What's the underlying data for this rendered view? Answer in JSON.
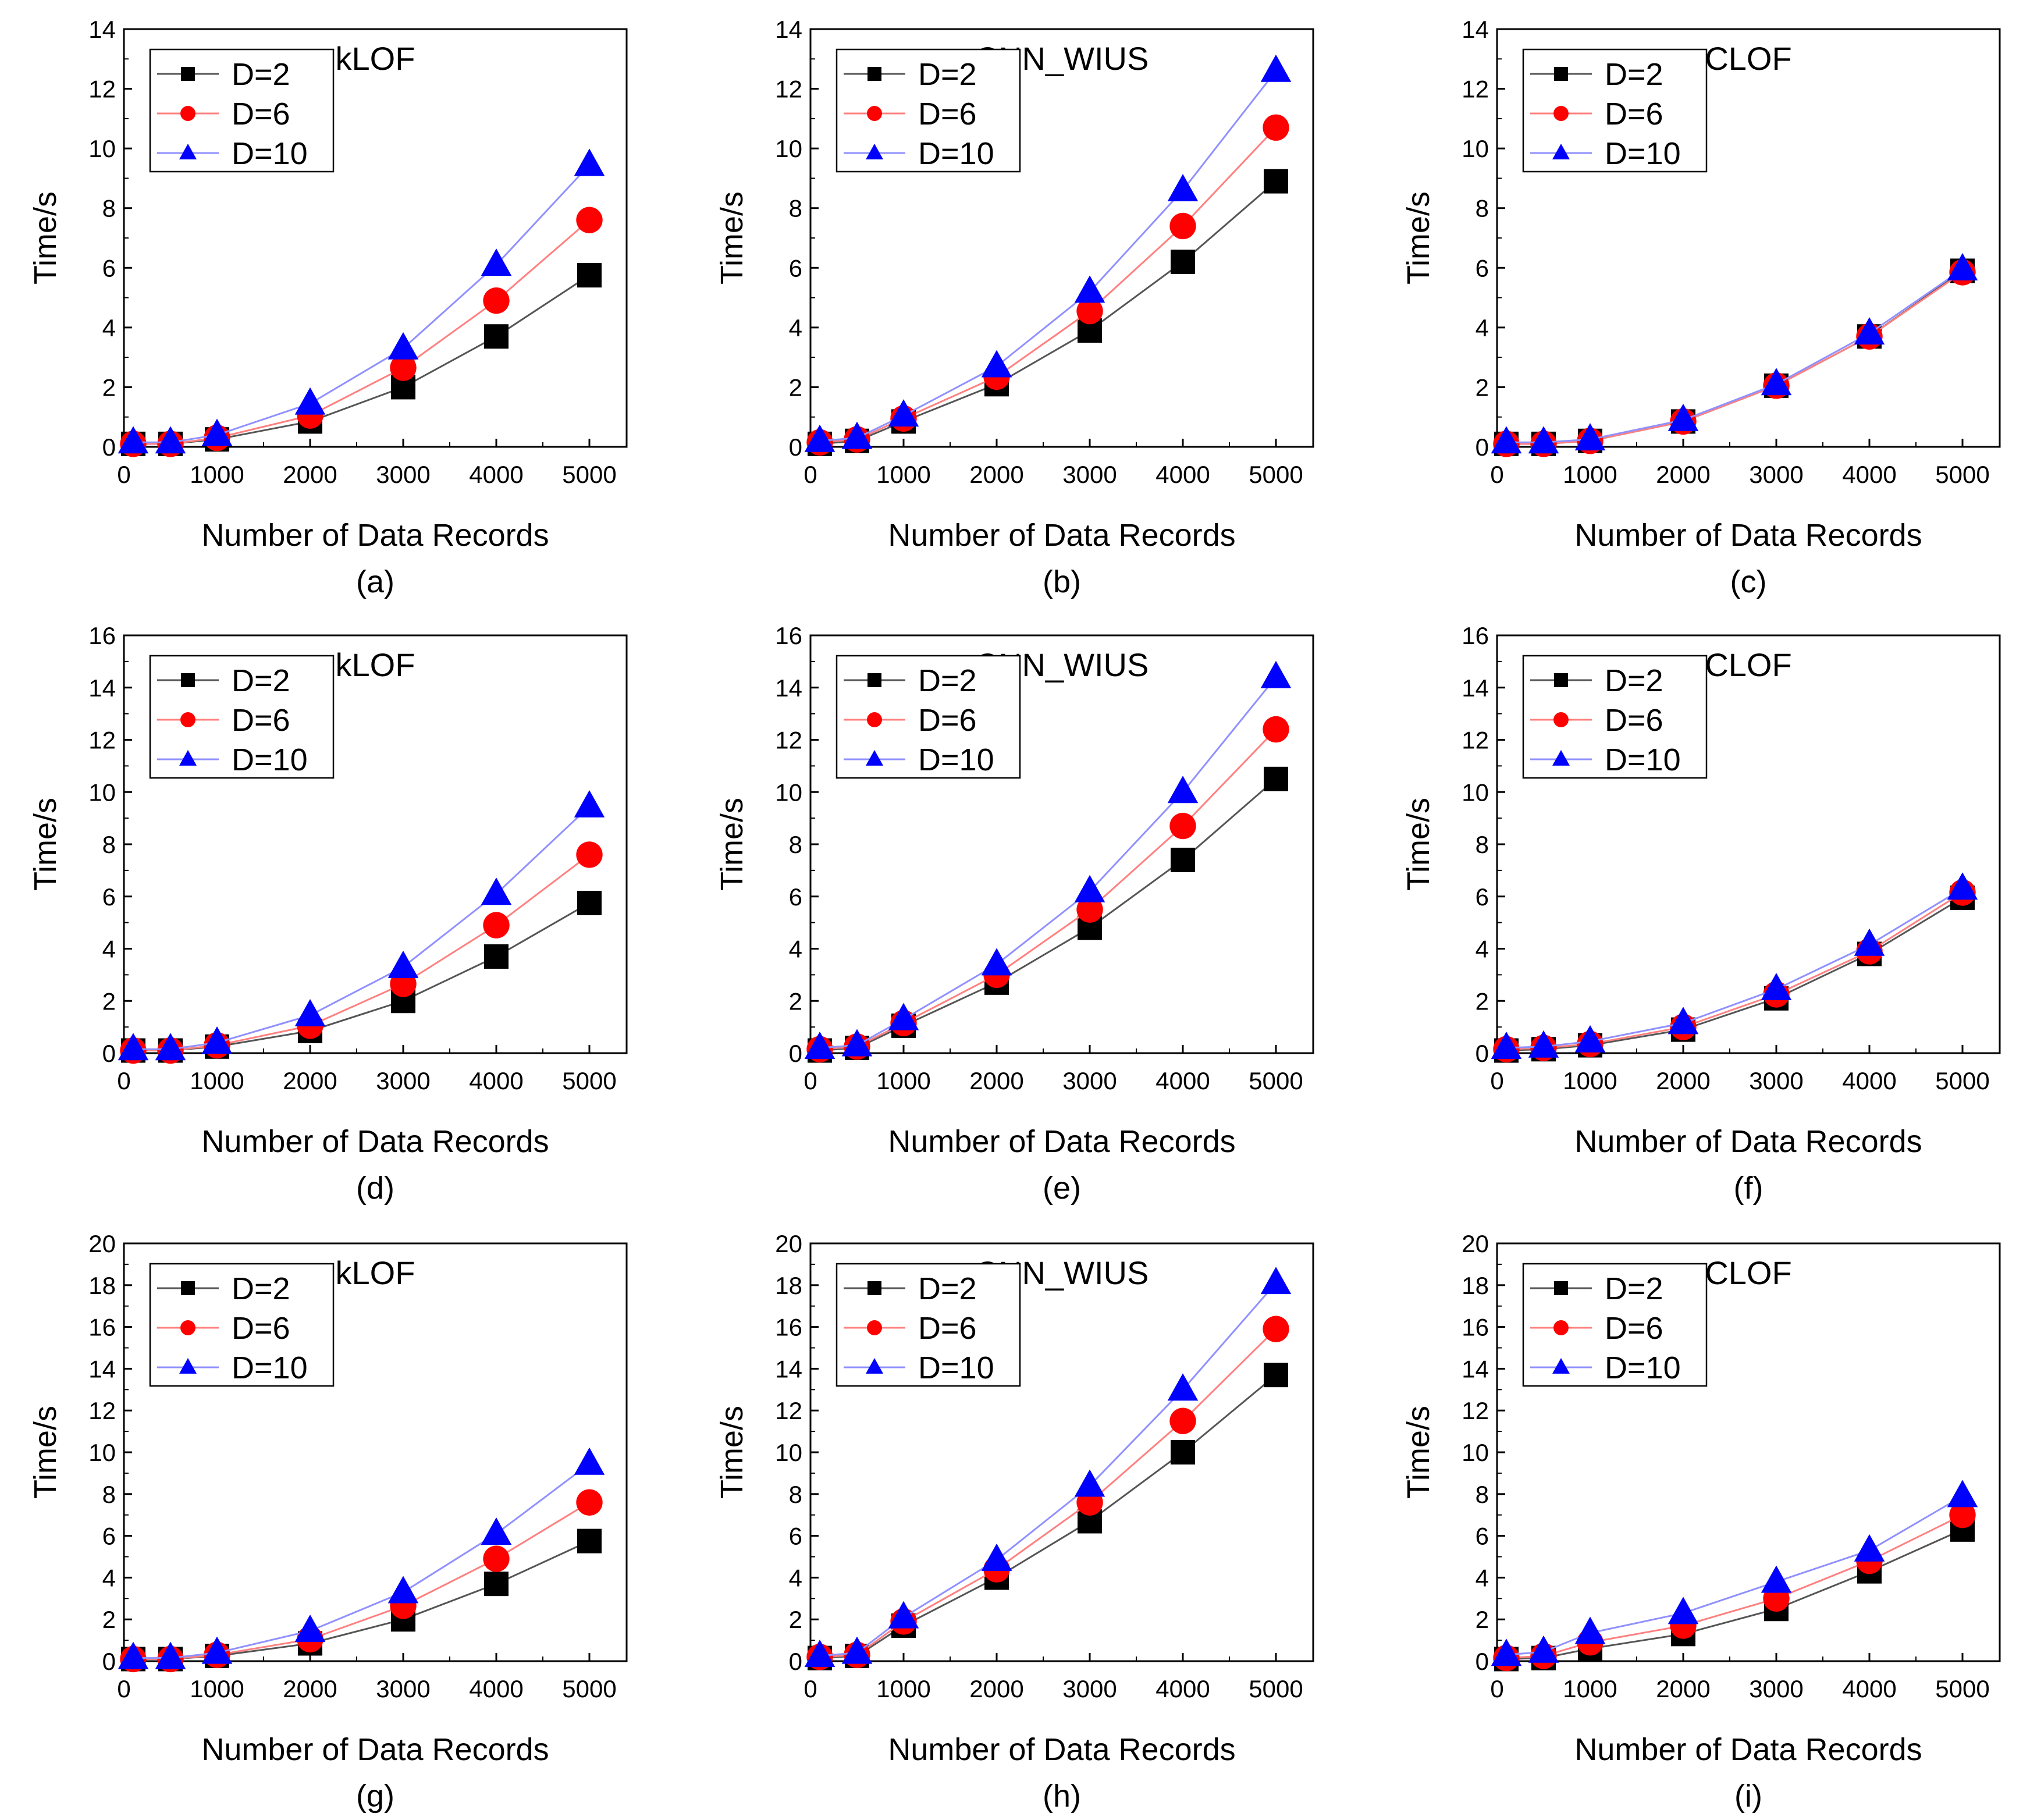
{
  "figure": {
    "colors": {
      "D2": "#000000",
      "D6": "#ff0000",
      "D10": "#0000ff",
      "axis": "#000000",
      "background": "#ffffff"
    }
  },
  "chart_data": [
    {
      "panel": "(a)",
      "type": "line",
      "title": "kLOF",
      "xlabel": "Number of Data Records",
      "ylabel": "Time/s",
      "x": [
        100,
        500,
        1000,
        2000,
        3000,
        4000,
        5000
      ],
      "xticks": [
        "0",
        "1000",
        "2000",
        "3000",
        "4000",
        "5000"
      ],
      "xlim": [
        0,
        5400
      ],
      "ylim": [
        0,
        14
      ],
      "yticks": [
        "0",
        "2",
        "4",
        "6",
        "8",
        "10",
        "12",
        "14"
      ],
      "legend_position": "top-left",
      "series": [
        {
          "name": "D=2",
          "marker": "square",
          "values": [
            0.1,
            0.1,
            0.25,
            0.85,
            2.0,
            3.7,
            5.75
          ]
        },
        {
          "name": "D=6",
          "marker": "circle",
          "values": [
            0.1,
            0.1,
            0.3,
            1.05,
            2.65,
            4.9,
            7.6
          ]
        },
        {
          "name": "D=10",
          "marker": "triangle",
          "values": [
            0.15,
            0.15,
            0.4,
            1.45,
            3.3,
            6.1,
            9.45
          ]
        }
      ]
    },
    {
      "panel": "(b)",
      "type": "line",
      "title": "CNN_WIUS",
      "xlabel": "Number of Data Records",
      "ylabel": "Time/s",
      "x": [
        100,
        500,
        1000,
        2000,
        3000,
        4000,
        5000
      ],
      "xticks": [
        "0",
        "1000",
        "2000",
        "3000",
        "4000",
        "5000"
      ],
      "xlim": [
        0,
        5400
      ],
      "ylim": [
        0,
        14
      ],
      "yticks": [
        "0",
        "2",
        "4",
        "6",
        "8",
        "10",
        "12",
        "14"
      ],
      "legend_position": "top-left",
      "series": [
        {
          "name": "D=2",
          "marker": "square",
          "values": [
            0.1,
            0.2,
            0.85,
            2.1,
            3.9,
            6.2,
            8.9
          ]
        },
        {
          "name": "D=6",
          "marker": "circle",
          "values": [
            0.15,
            0.25,
            0.95,
            2.35,
            4.55,
            7.4,
            10.7
          ]
        },
        {
          "name": "D=10",
          "marker": "triangle",
          "values": [
            0.2,
            0.3,
            1.05,
            2.7,
            5.2,
            8.6,
            12.6
          ]
        }
      ]
    },
    {
      "panel": "(c)",
      "type": "line",
      "title": "CLOF",
      "xlabel": "Number of Data Records",
      "ylabel": "Time/s",
      "x": [
        100,
        500,
        1000,
        2000,
        3000,
        4000,
        5000
      ],
      "xticks": [
        "0",
        "1000",
        "2000",
        "3000",
        "4000",
        "5000"
      ],
      "xlim": [
        0,
        5400
      ],
      "ylim": [
        0,
        14
      ],
      "yticks": [
        "0",
        "2",
        "4",
        "6",
        "8",
        "10",
        "12",
        "14"
      ],
      "legend_position": "top-left",
      "series": [
        {
          "name": "D=2",
          "marker": "square",
          "values": [
            0.1,
            0.1,
            0.2,
            0.85,
            2.05,
            3.7,
            5.9
          ]
        },
        {
          "name": "D=6",
          "marker": "circle",
          "values": [
            0.1,
            0.1,
            0.2,
            0.85,
            2.05,
            3.7,
            5.85
          ]
        },
        {
          "name": "D=10",
          "marker": "triangle",
          "values": [
            0.15,
            0.15,
            0.25,
            0.9,
            2.1,
            3.8,
            5.95
          ]
        }
      ]
    },
    {
      "panel": "(d)",
      "type": "line",
      "title": "kLOF",
      "xlabel": "Number of Data Records",
      "ylabel": "Time/s",
      "x": [
        100,
        500,
        1000,
        2000,
        3000,
        4000,
        5000
      ],
      "xticks": [
        "0",
        "1000",
        "2000",
        "3000",
        "4000",
        "5000"
      ],
      "xlim": [
        0,
        5400
      ],
      "ylim": [
        0,
        16
      ],
      "yticks": [
        "0",
        "2",
        "4",
        "6",
        "8",
        "10",
        "12",
        "14",
        "16"
      ],
      "legend_position": "top-left",
      "series": [
        {
          "name": "D=2",
          "marker": "square",
          "values": [
            0.1,
            0.1,
            0.25,
            0.85,
            2.0,
            3.7,
            5.75
          ]
        },
        {
          "name": "D=6",
          "marker": "circle",
          "values": [
            0.1,
            0.1,
            0.3,
            1.05,
            2.65,
            4.9,
            7.6
          ]
        },
        {
          "name": "D=10",
          "marker": "triangle",
          "values": [
            0.15,
            0.15,
            0.4,
            1.45,
            3.3,
            6.1,
            9.45
          ]
        }
      ]
    },
    {
      "panel": "(e)",
      "type": "line",
      "title": "CNN_WIUS",
      "xlabel": "Number of Data Records",
      "ylabel": "Time/s",
      "x": [
        100,
        500,
        1000,
        2000,
        3000,
        4000,
        5000
      ],
      "xticks": [
        "0",
        "1000",
        "2000",
        "3000",
        "4000",
        "5000"
      ],
      "xlim": [
        0,
        5400
      ],
      "ylim": [
        0,
        16
      ],
      "yticks": [
        "0",
        "2",
        "4",
        "6",
        "8",
        "10",
        "12",
        "14",
        "16"
      ],
      "legend_position": "top-left",
      "series": [
        {
          "name": "D=2",
          "marker": "square",
          "values": [
            0.1,
            0.2,
            1.05,
            2.7,
            4.8,
            7.4,
            10.5
          ]
        },
        {
          "name": "D=6",
          "marker": "circle",
          "values": [
            0.15,
            0.25,
            1.15,
            3.0,
            5.5,
            8.7,
            12.4
          ]
        },
        {
          "name": "D=10",
          "marker": "triangle",
          "values": [
            0.2,
            0.3,
            1.3,
            3.4,
            6.2,
            10.0,
            14.4
          ]
        }
      ]
    },
    {
      "panel": "(f)",
      "type": "line",
      "title": "CLOF",
      "xlabel": "Number of Data Records",
      "ylabel": "Time/s",
      "x": [
        100,
        500,
        1000,
        2000,
        3000,
        4000,
        5000
      ],
      "xticks": [
        "0",
        "1000",
        "2000",
        "3000",
        "4000",
        "5000"
      ],
      "xlim": [
        0,
        5400
      ],
      "ylim": [
        0,
        16
      ],
      "yticks": [
        "0",
        "2",
        "4",
        "6",
        "8",
        "10",
        "12",
        "14",
        "16"
      ],
      "legend_position": "top-left",
      "series": [
        {
          "name": "D=2",
          "marker": "square",
          "values": [
            0.1,
            0.15,
            0.3,
            0.9,
            2.1,
            3.8,
            5.95
          ]
        },
        {
          "name": "D=6",
          "marker": "circle",
          "values": [
            0.15,
            0.2,
            0.35,
            1.0,
            2.25,
            3.9,
            6.15
          ]
        },
        {
          "name": "D=10",
          "marker": "triangle",
          "values": [
            0.2,
            0.25,
            0.45,
            1.15,
            2.45,
            4.15,
            6.3
          ]
        }
      ]
    },
    {
      "panel": "(g)",
      "type": "line",
      "title": "kLOF",
      "xlabel": "Number of Data Records",
      "ylabel": "Time/s",
      "x": [
        100,
        500,
        1000,
        2000,
        3000,
        4000,
        5000
      ],
      "xticks": [
        "0",
        "1000",
        "2000",
        "3000",
        "4000",
        "5000"
      ],
      "xlim": [
        0,
        5400
      ],
      "ylim": [
        0,
        20
      ],
      "yticks": [
        "0",
        "2",
        "4",
        "6",
        "8",
        "10",
        "12",
        "14",
        "16",
        "18",
        "20"
      ],
      "legend_position": "top-left",
      "series": [
        {
          "name": "D=2",
          "marker": "square",
          "values": [
            0.1,
            0.1,
            0.25,
            0.85,
            2.0,
            3.7,
            5.75
          ]
        },
        {
          "name": "D=6",
          "marker": "circle",
          "values": [
            0.1,
            0.1,
            0.3,
            1.05,
            2.65,
            4.9,
            7.6
          ]
        },
        {
          "name": "D=10",
          "marker": "triangle",
          "values": [
            0.15,
            0.15,
            0.4,
            1.45,
            3.3,
            6.1,
            9.45
          ]
        }
      ]
    },
    {
      "panel": "(h)",
      "type": "line",
      "title": "CNN_WIUS",
      "xlabel": "Number of Data Records",
      "ylabel": "Time/s",
      "x": [
        100,
        500,
        1000,
        2000,
        3000,
        4000,
        5000
      ],
      "xticks": [
        "0",
        "1000",
        "2000",
        "3000",
        "4000",
        "5000"
      ],
      "xlim": [
        0,
        5400
      ],
      "ylim": [
        0,
        20
      ],
      "yticks": [
        "0",
        "2",
        "4",
        "6",
        "8",
        "10",
        "12",
        "14",
        "16",
        "18",
        "20"
      ],
      "legend_position": "top-left",
      "series": [
        {
          "name": "D=2",
          "marker": "square",
          "values": [
            0.15,
            0.25,
            1.7,
            4.0,
            6.7,
            10.0,
            13.7
          ]
        },
        {
          "name": "D=6",
          "marker": "circle",
          "values": [
            0.2,
            0.3,
            1.9,
            4.4,
            7.6,
            11.5,
            15.9
          ]
        },
        {
          "name": "D=10",
          "marker": "triangle",
          "values": [
            0.25,
            0.4,
            2.1,
            4.85,
            8.4,
            13.0,
            18.1
          ]
        }
      ]
    },
    {
      "panel": "(i)",
      "type": "line",
      "title": "CLOF",
      "xlabel": "Number of Data Records",
      "ylabel": "Time/s",
      "x": [
        100,
        500,
        1000,
        2000,
        3000,
        4000,
        5000
      ],
      "xticks": [
        "0",
        "1000",
        "2000",
        "3000",
        "4000",
        "5000"
      ],
      "xlim": [
        0,
        5400
      ],
      "ylim": [
        0,
        20
      ],
      "yticks": [
        "0",
        "2",
        "4",
        "6",
        "8",
        "10",
        "12",
        "14",
        "16",
        "18",
        "20"
      ],
      "legend_position": "top-left",
      "series": [
        {
          "name": "D=2",
          "marker": "square",
          "values": [
            0.1,
            0.15,
            0.6,
            1.3,
            2.5,
            4.3,
            6.3
          ]
        },
        {
          "name": "D=6",
          "marker": "circle",
          "values": [
            0.15,
            0.25,
            0.9,
            1.7,
            3.0,
            4.8,
            7.0
          ]
        },
        {
          "name": "D=10",
          "marker": "triangle",
          "values": [
            0.3,
            0.45,
            1.35,
            2.3,
            3.8,
            5.3,
            7.9
          ]
        }
      ]
    }
  ]
}
